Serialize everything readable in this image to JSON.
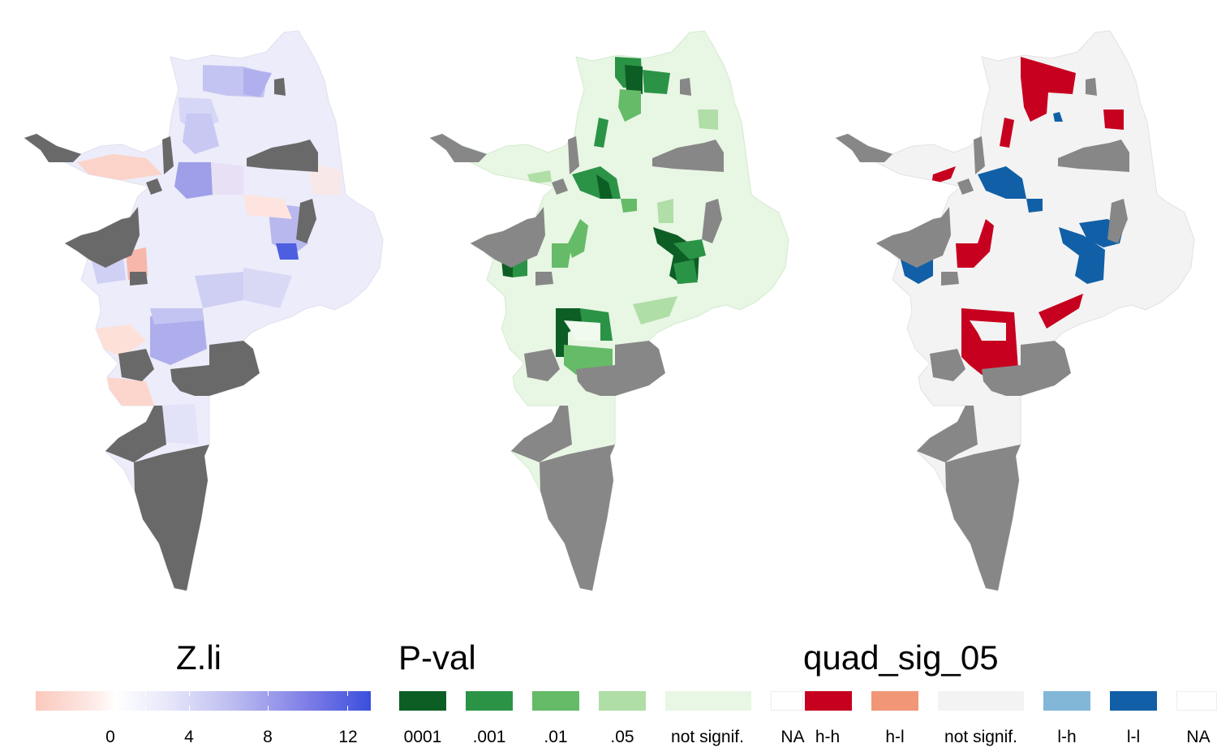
{
  "panels": [
    {
      "name": "Z.li",
      "fill_scheme": "diverging-red-blue"
    },
    {
      "name": "P-val",
      "fill_scheme": "greens"
    },
    {
      "name": "quad_sig_05",
      "fill_scheme": "red-blue-quadrants"
    }
  ],
  "missing_color": "#686868",
  "legend_zli": {
    "title": "Z.li",
    "ticks": [
      "0",
      "4",
      "8",
      "12"
    ],
    "tick_values": [
      0,
      4,
      8,
      12
    ],
    "range": [
      -3,
      13
    ],
    "low_color": "#fcc8bd",
    "mid_color": "#ffffff",
    "high_color": "#3a4fdc"
  },
  "legend_pval": {
    "title": "P-val",
    "items": [
      {
        "label": "0001",
        "color": "#0d5e25"
      },
      {
        "label": ".001",
        "color": "#2b9346"
      },
      {
        "label": ".01",
        "color": "#66bb68"
      },
      {
        "label": ".05",
        "color": "#afdea6"
      },
      {
        "label": "not signif.",
        "color": "#e8f6e4"
      },
      {
        "label": "NA",
        "color": "#ffffff"
      }
    ]
  },
  "legend_quad": {
    "title": "quad_sig_05",
    "items": [
      {
        "label": "h-h",
        "color": "#c7001f"
      },
      {
        "label": "h-l",
        "color": "#f19777"
      },
      {
        "label": "not signif.",
        "color": "#f3f3f3"
      },
      {
        "label": "l-h",
        "color": "#82b7d8"
      },
      {
        "label": "l-l",
        "color": "#1160a7"
      },
      {
        "label": "NA",
        "color": "#ffffff"
      }
    ]
  }
}
